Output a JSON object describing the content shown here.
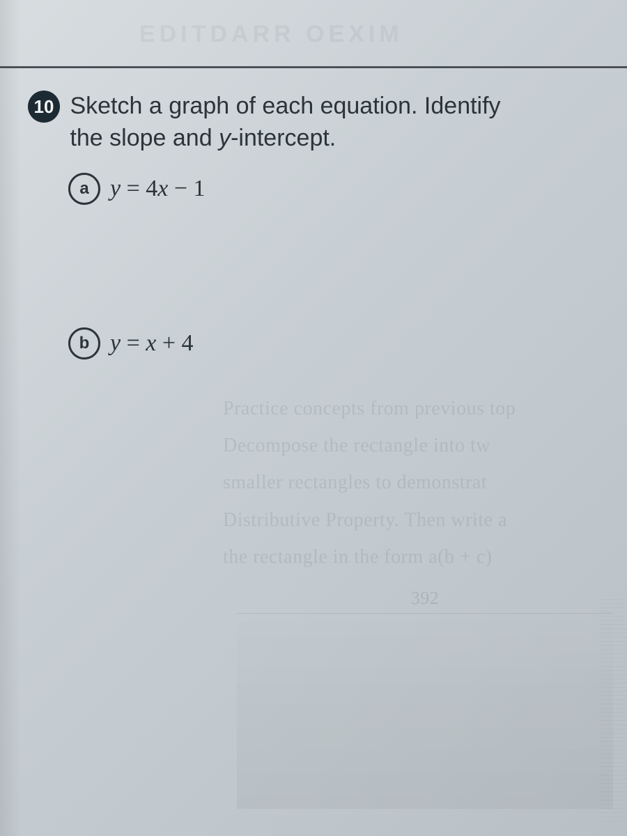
{
  "bleed_top": "EDITDARR OEXIM",
  "problem": {
    "number": "10",
    "instruction_line1": "Sketch a graph of each equation. Identify",
    "instruction_line2_pre": "the slope and ",
    "instruction_line2_ital": "y",
    "instruction_line2_post": "-intercept.",
    "parts": {
      "a": {
        "label": "a",
        "lhs": "y",
        "eq": " = 4",
        "var2": "x",
        "tail": " − 1"
      },
      "b": {
        "label": "b",
        "lhs": "y",
        "eq": " = ",
        "var2": "x",
        "tail": " + 4"
      }
    }
  },
  "ghost": {
    "l1": "Practice concepts from previous top",
    "l2": "Decompose the rectangle into tw",
    "l3": "smaller rectangles to demonstrat",
    "l4": "Distributive Property. Then write a",
    "l5": "the rectangle in the form a(b + c)",
    "page_num": "392"
  }
}
